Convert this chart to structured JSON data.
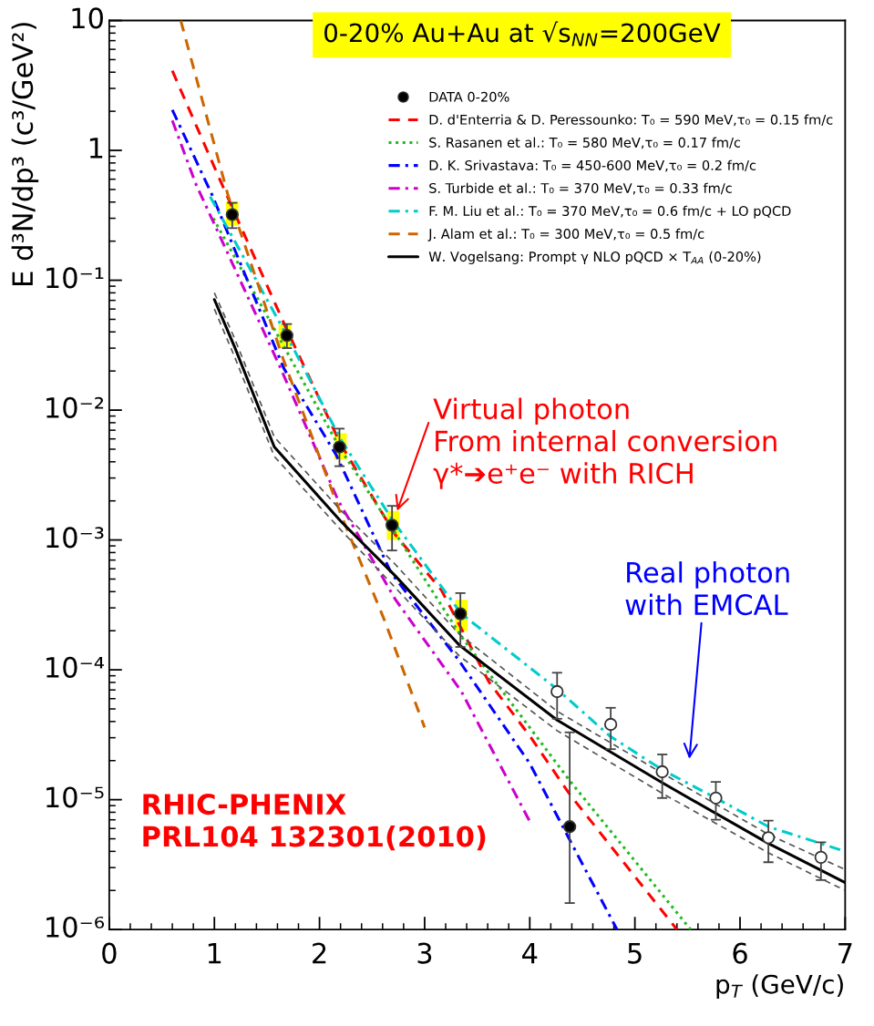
{
  "chart_data": {
    "type": "line",
    "title": "0-20% Au+Au at √s$_{NN}$=200GeV",
    "xlabel": "p$_{T}$ (GeV/c)",
    "ylabel": "E d³N/dp³ (c³/GeV²)",
    "log": "y",
    "xlim": [
      0,
      7
    ],
    "ylim": [
      1e-06,
      10
    ],
    "xticks": [
      0,
      1,
      2,
      3,
      4,
      5,
      6,
      7
    ],
    "yticks": [
      {
        "value": 1e-06,
        "label": "10⁻⁶"
      },
      {
        "value": 1e-05,
        "label": "10⁻⁵"
      },
      {
        "value": 0.0001,
        "label": "10⁻⁴"
      },
      {
        "value": 0.001,
        "label": "10⁻³"
      },
      {
        "value": 0.01,
        "label": "10⁻²"
      },
      {
        "value": 0.1,
        "label": "10⁻¹"
      },
      1,
      10
    ],
    "grid": false,
    "legend": "top right",
    "series": [
      {
        "type": "bar",
        "color": "#ffff00",
        "x": [
          1.17,
          1.67,
          2.2,
          2.7,
          3.35
        ],
        "base": [
          0.26,
          0.03,
          0.0041,
          0.00099,
          0.000197
        ],
        "values": [
          0.15,
          0.016,
          0.0026,
          0.0007,
          0.000153
        ]
      },
      {
        "type": "scatter",
        "name": "DATA 0-20%",
        "color": "#000000",
        "marker": "circle",
        "x": [
          1.17,
          1.69,
          2.19,
          2.69,
          3.34,
          4.38
        ],
        "values": [
          0.32,
          0.0375,
          0.0052,
          0.0013,
          0.00027,
          6.2e-06
        ],
        "errors": [
          [
            0.252,
            0.395
          ],
          [
            0.03,
            0.046
          ],
          [
            0.0037,
            0.0072
          ],
          [
            0.00083,
            0.00183
          ],
          [
            0.00015,
            0.00039
          ],
          [
            1.6e-06,
            3.3e-05
          ]
        ]
      },
      {
        "name": "D. d'Enterria & D. Peressounko: T₀ = 590 MeV,τ₀ = 0.15 fm/c",
        "color": "#ff0000",
        "line_style": "dashed",
        "x": [
          0.6,
          1.05,
          1.67,
          2.2,
          2.72,
          3.16,
          3.61,
          4.0,
          4.38,
          5.4
        ],
        "values": [
          4.1,
          0.6,
          0.045,
          0.0055,
          0.0011,
          0.00041,
          8.1e-05,
          3.1e-05,
          1.1e-05,
          1e-06
        ]
      },
      {
        "name": "S. Rasanen et al.: T₀ = 580 MeV,τ₀ = 0.17 fm/c",
        "color": "#22bb22",
        "line_style": "dotted",
        "x": [
          0.99,
          1.67,
          2.2,
          2.7,
          3.35,
          4.38,
          5.53
        ],
        "values": [
          0.3,
          0.03,
          0.005,
          0.0012,
          0.00018,
          1.4e-05,
          1e-06
        ]
      },
      {
        "name": "D. K. Srivastava: T₀ = 450-600 MeV,τ₀ = 0.2 fm/c",
        "color": "#0000ff",
        "line_style": "dashdot",
        "x": [
          0.6,
          0.98,
          1.66,
          2.16,
          2.68,
          3.32,
          4.0,
          4.38,
          4.83
        ],
        "values": [
          2.05,
          0.45,
          0.021,
          0.0045,
          0.00056,
          0.00012,
          1.9e-05,
          4.9e-06,
          1e-06
        ]
      },
      {
        "name": "S. Turbide et al.: T₀ = 370 MeV,τ₀ = 0.33 fm/c",
        "color": "#cc00cc",
        "line_style": "dashdot",
        "x": [
          0.6,
          0.82,
          1.63,
          2.18,
          2.72,
          3.35,
          4.0
        ],
        "values": [
          1.7,
          0.56,
          0.021,
          0.002,
          0.00035,
          6.8e-05,
          6.8e-06
        ]
      },
      {
        "name": "F. M. Liu et al.: T₀ = 370 MeV,τ₀ = 0.6 fm/c + LO pQCD",
        "color": "#00cccc",
        "line_style": "dashdot",
        "x": [
          0.96,
          1.67,
          2.2,
          2.7,
          3.35,
          4.26,
          4.76,
          5.26,
          5.77,
          6.27,
          7.0
        ],
        "values": [
          0.44,
          0.04,
          0.006,
          0.0014,
          0.00027,
          7.1e-05,
          3.1e-05,
          1.7e-05,
          1.03e-05,
          6.2e-06,
          4e-06
        ]
      },
      {
        "name": "J. Alam et al.: T₀ = 300 MeV,τ₀ = 0.5 fm/c",
        "color": "#cc6600",
        "line_style": "dashed",
        "x": [
          0.68,
          1.13,
          1.66,
          2.2,
          2.61,
          3.0
        ],
        "values": [
          10,
          0.45,
          0.024,
          0.0016,
          0.00025,
          3.6e-05
        ]
      },
      {
        "name": "W. Vogelsang: Prompt γ NLO pQCD × T$_{AA}$ (0-20%)",
        "color": "#000000",
        "line_style": "solid",
        "x": [
          1.0,
          1.19,
          1.57,
          2.2,
          2.72,
          3.33,
          4.26,
          5.26,
          6.27,
          7.0
        ],
        "values": [
          0.071,
          0.031,
          0.0052,
          0.0014,
          0.00053,
          0.000155,
          4.1e-05,
          1.35e-05,
          4.6e-06,
          2.3e-06
        ]
      },
      {
        "color": "#555555",
        "line_style": "dashed",
        "x": [
          1.0,
          1.19,
          1.57,
          2.2,
          2.72,
          3.33,
          4.26,
          5.26,
          6.27,
          7.0
        ],
        "values": [
          0.06,
          0.026,
          0.0044,
          0.0012,
          0.00043,
          0.000128,
          3.4e-05,
          1.12e-05,
          3.9e-06,
          2e-06
        ]
      },
      {
        "color": "#555555",
        "line_style": "dashed",
        "x": [
          1.0,
          1.19,
          1.57,
          2.2,
          2.72,
          3.33,
          4.26,
          5.26,
          6.27,
          7.0
        ],
        "values": [
          0.08,
          0.036,
          0.0062,
          0.0017,
          0.00065,
          0.000188,
          4.8e-05,
          1.6e-05,
          5.4e-06,
          2.9e-06
        ]
      },
      {
        "type": "scatter",
        "color": "#ffffff",
        "marker": "circle",
        "x": [
          4.26,
          4.77,
          5.26,
          5.77,
          6.27,
          6.77
        ],
        "values": [
          6.8e-05,
          3.8e-05,
          1.64e-05,
          1.03e-05,
          5.1e-06,
          3.6e-06
        ],
        "errors": [
          [
            4.2e-05,
            9.5e-05
          ],
          [
            2.45e-05,
            5.1e-05
          ],
          [
            1.03e-05,
            2.23e-05
          ],
          [
            7e-06,
            1.37e-05
          ],
          [
            3.3e-06,
            6.9e-06
          ],
          [
            2.4e-06,
            4.7e-06
          ]
        ]
      }
    ],
    "annotations": [
      {
        "text": "Virtual photon\nFrom internal conversion\nγ*➔e⁺e⁻ with RICH",
        "x": 2.69,
        "y": 0.0013
      },
      "Real photon\nwith EMCAL",
      "RHIC-PHENIX\nPRL104 132301(2010)"
    ]
  }
}
